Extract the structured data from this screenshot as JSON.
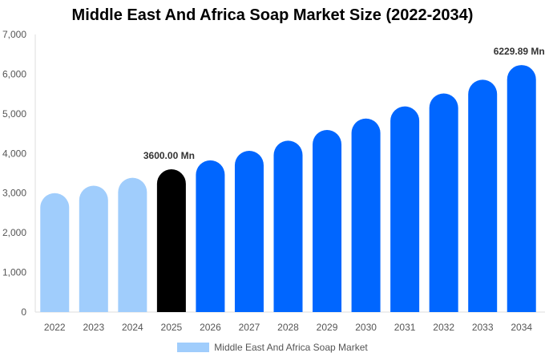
{
  "chart_data": {
    "type": "bar",
    "title": "Middle East And Africa Soap Market Size (2022-2034)",
    "categories": [
      "2022",
      "2023",
      "2024",
      "2025",
      "2026",
      "2027",
      "2028",
      "2029",
      "2030",
      "2031",
      "2032",
      "2033",
      "2034"
    ],
    "series": [
      {
        "name": "Middle East And Africa Soap Market",
        "values": [
          2999,
          3187,
          3387,
          3600,
          3826,
          4066,
          4322,
          4593,
          4881,
          5188,
          5514,
          5860,
          6229.89
        ]
      }
    ],
    "ylim": [
      0,
      7000
    ],
    "yticks": [
      "0",
      "1,000",
      "2,000",
      "3,000",
      "4,000",
      "5,000",
      "6,000",
      "7,000"
    ],
    "data_labels": [
      {
        "category": "2025",
        "text": "3600.00 Mn"
      },
      {
        "category": "2034",
        "text": "6229.89 Mn"
      }
    ],
    "bar_colors": {
      "historical": "#a0cdfc",
      "base_year": "#000000",
      "forecast": "#0066ff"
    },
    "grid": false,
    "legend_position": "bottom"
  }
}
